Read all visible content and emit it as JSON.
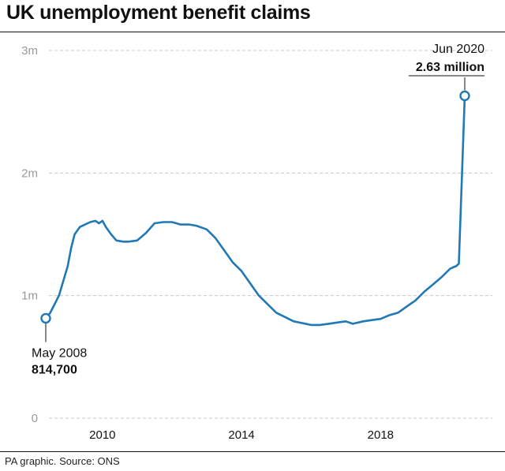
{
  "header": {
    "title": "UK unemployment benefit claims"
  },
  "footer": {
    "source": "PA graphic. Source: ONS"
  },
  "colors": {
    "line": "#2079b5",
    "grid": "#c8c8c8",
    "axis_label": "#9a9a9a",
    "text": "#111111"
  },
  "chart_data": {
    "type": "line",
    "title": "UK unemployment benefit claims",
    "xlabel": "",
    "ylabel": "",
    "xlim": [
      2008.3,
      2020.5
    ],
    "ylim": [
      0,
      3000000
    ],
    "grid": true,
    "legend": "none",
    "x_ticks": [
      {
        "value": 2010,
        "label": "2010"
      },
      {
        "value": 2014,
        "label": "2014"
      },
      {
        "value": 2018,
        "label": "2018"
      }
    ],
    "y_ticks": [
      {
        "value": 0,
        "label": "0"
      },
      {
        "value": 1000000,
        "label": "1m"
      },
      {
        "value": 2000000,
        "label": "2m"
      },
      {
        "value": 3000000,
        "label": "3m"
      }
    ],
    "series": [
      {
        "x": [
          2008.37,
          2008.5,
          2008.75,
          2009.0,
          2009.1,
          2009.2,
          2009.35,
          2009.5,
          2009.65,
          2009.8,
          2009.9,
          2010.0,
          2010.1,
          2010.25,
          2010.4,
          2010.6,
          2010.75,
          2011.0,
          2011.25,
          2011.5,
          2011.75,
          2012.0,
          2012.25,
          2012.5,
          2012.7,
          2012.9,
          2013.0,
          2013.25,
          2013.5,
          2013.75,
          2014.0,
          2014.5,
          2015.0,
          2015.5,
          2016.0,
          2016.25,
          2016.5,
          2016.75,
          2017.0,
          2017.2,
          2017.5,
          2017.75,
          2018.0,
          2018.25,
          2018.5,
          2018.75,
          2019.0,
          2019.25,
          2019.5,
          2019.75,
          2020.0,
          2020.08,
          2020.17,
          2020.25,
          2020.42
        ],
        "y": [
          814700,
          860000,
          1000000,
          1240000,
          1390000,
          1500000,
          1560000,
          1580000,
          1600000,
          1610000,
          1590000,
          1610000,
          1560000,
          1500000,
          1450000,
          1440000,
          1440000,
          1450000,
          1510000,
          1590000,
          1600000,
          1600000,
          1580000,
          1580000,
          1570000,
          1550000,
          1540000,
          1470000,
          1370000,
          1270000,
          1200000,
          1000000,
          860000,
          790000,
          760000,
          760000,
          770000,
          780000,
          790000,
          770000,
          790000,
          800000,
          810000,
          840000,
          860000,
          910000,
          960000,
          1030000,
          1090000,
          1150000,
          1220000,
          1230000,
          1240000,
          1260000,
          2630000
        ]
      }
    ],
    "annotations": [
      {
        "x": 2008.37,
        "y": 814700,
        "date": "May 2008",
        "value_label": "814,700",
        "position": "below"
      },
      {
        "x": 2020.42,
        "y": 2630000,
        "date": "Jun 2020",
        "value_label": "2.63 million",
        "position": "above"
      }
    ]
  }
}
